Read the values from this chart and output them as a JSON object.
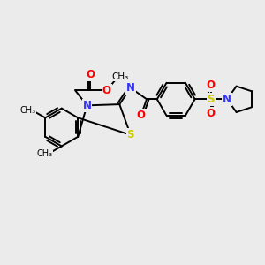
{
  "bg_color": "#ebebeb",
  "C_color": "#000000",
  "N_color": "#3333ff",
  "O_color": "#ff0000",
  "S_color": "#cccc00",
  "bond_lw": 1.4,
  "font_size": 8.5,
  "fig_w": 3.0,
  "fig_h": 3.0,
  "dpi": 100,
  "xlim": [
    0,
    10
  ],
  "ylim": [
    0,
    10
  ]
}
